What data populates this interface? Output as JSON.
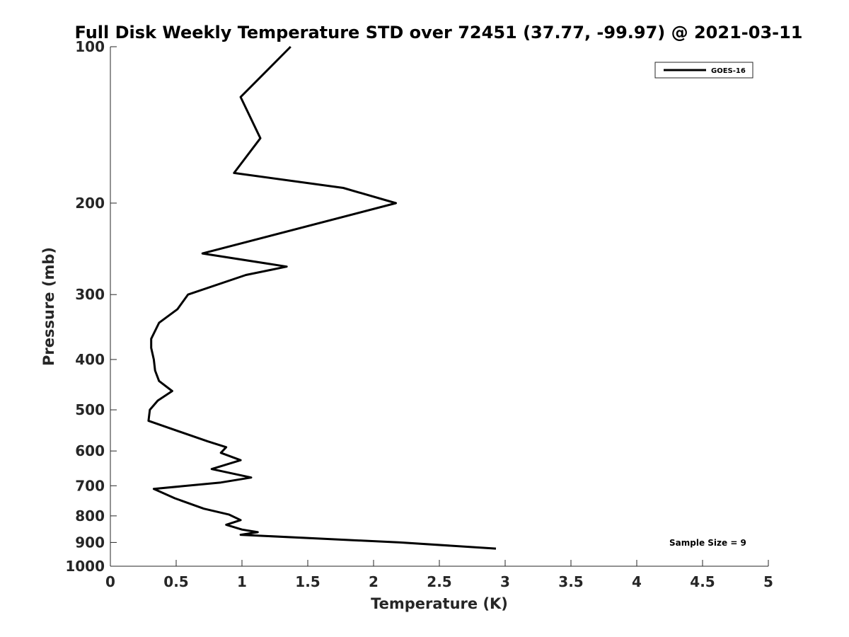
{
  "chart_data": {
    "type": "line",
    "title": "Full Disk Weekly Temperature STD over 72451 (37.77, -99.97) @ 2021-03-11",
    "xlabel": "Temperature (K)",
    "ylabel": "Pressure (mb)",
    "xlim": [
      0,
      5
    ],
    "ylim": [
      100,
      1000
    ],
    "y_scale": "log",
    "y_reversed": true,
    "x_ticks": [
      "0",
      "0.5",
      "1",
      "1.5",
      "2",
      "2.5",
      "3",
      "3.5",
      "4",
      "4.5",
      "5"
    ],
    "y_ticks": [
      "100",
      "200",
      "300",
      "400",
      "500",
      "600",
      "700",
      "800",
      "900",
      "1000"
    ],
    "grid": false,
    "legend": {
      "placement": "top-right",
      "entries": [
        "GOES-16"
      ]
    },
    "annotation": "Sample Size = 9",
    "series": [
      {
        "name": "GOES-16",
        "color": "#000000",
        "points": [
          {
            "x": 1.37,
            "p": 100
          },
          {
            "x": 0.99,
            "p": 125
          },
          {
            "x": 1.14,
            "p": 150
          },
          {
            "x": 0.94,
            "p": 175
          },
          {
            "x": 1.77,
            "p": 187
          },
          {
            "x": 2.17,
            "p": 200
          },
          {
            "x": 0.7,
            "p": 250
          },
          {
            "x": 1.34,
            "p": 265
          },
          {
            "x": 1.03,
            "p": 275
          },
          {
            "x": 0.59,
            "p": 300
          },
          {
            "x": 0.51,
            "p": 320
          },
          {
            "x": 0.37,
            "p": 340
          },
          {
            "x": 0.31,
            "p": 365
          },
          {
            "x": 0.31,
            "p": 380
          },
          {
            "x": 0.33,
            "p": 400
          },
          {
            "x": 0.34,
            "p": 420
          },
          {
            "x": 0.37,
            "p": 440
          },
          {
            "x": 0.47,
            "p": 460
          },
          {
            "x": 0.36,
            "p": 480
          },
          {
            "x": 0.3,
            "p": 500
          },
          {
            "x": 0.29,
            "p": 525
          },
          {
            "x": 0.74,
            "p": 575
          },
          {
            "x": 0.88,
            "p": 590
          },
          {
            "x": 0.84,
            "p": 605
          },
          {
            "x": 0.99,
            "p": 625
          },
          {
            "x": 0.77,
            "p": 650
          },
          {
            "x": 1.07,
            "p": 675
          },
          {
            "x": 0.84,
            "p": 690
          },
          {
            "x": 0.33,
            "p": 710
          },
          {
            "x": 0.49,
            "p": 740
          },
          {
            "x": 0.71,
            "p": 775
          },
          {
            "x": 0.9,
            "p": 795
          },
          {
            "x": 0.99,
            "p": 815
          },
          {
            "x": 0.88,
            "p": 832
          },
          {
            "x": 1.0,
            "p": 850
          },
          {
            "x": 1.12,
            "p": 860
          },
          {
            "x": 0.99,
            "p": 870
          },
          {
            "x": 2.2,
            "p": 900
          },
          {
            "x": 2.93,
            "p": 925
          }
        ]
      }
    ]
  }
}
